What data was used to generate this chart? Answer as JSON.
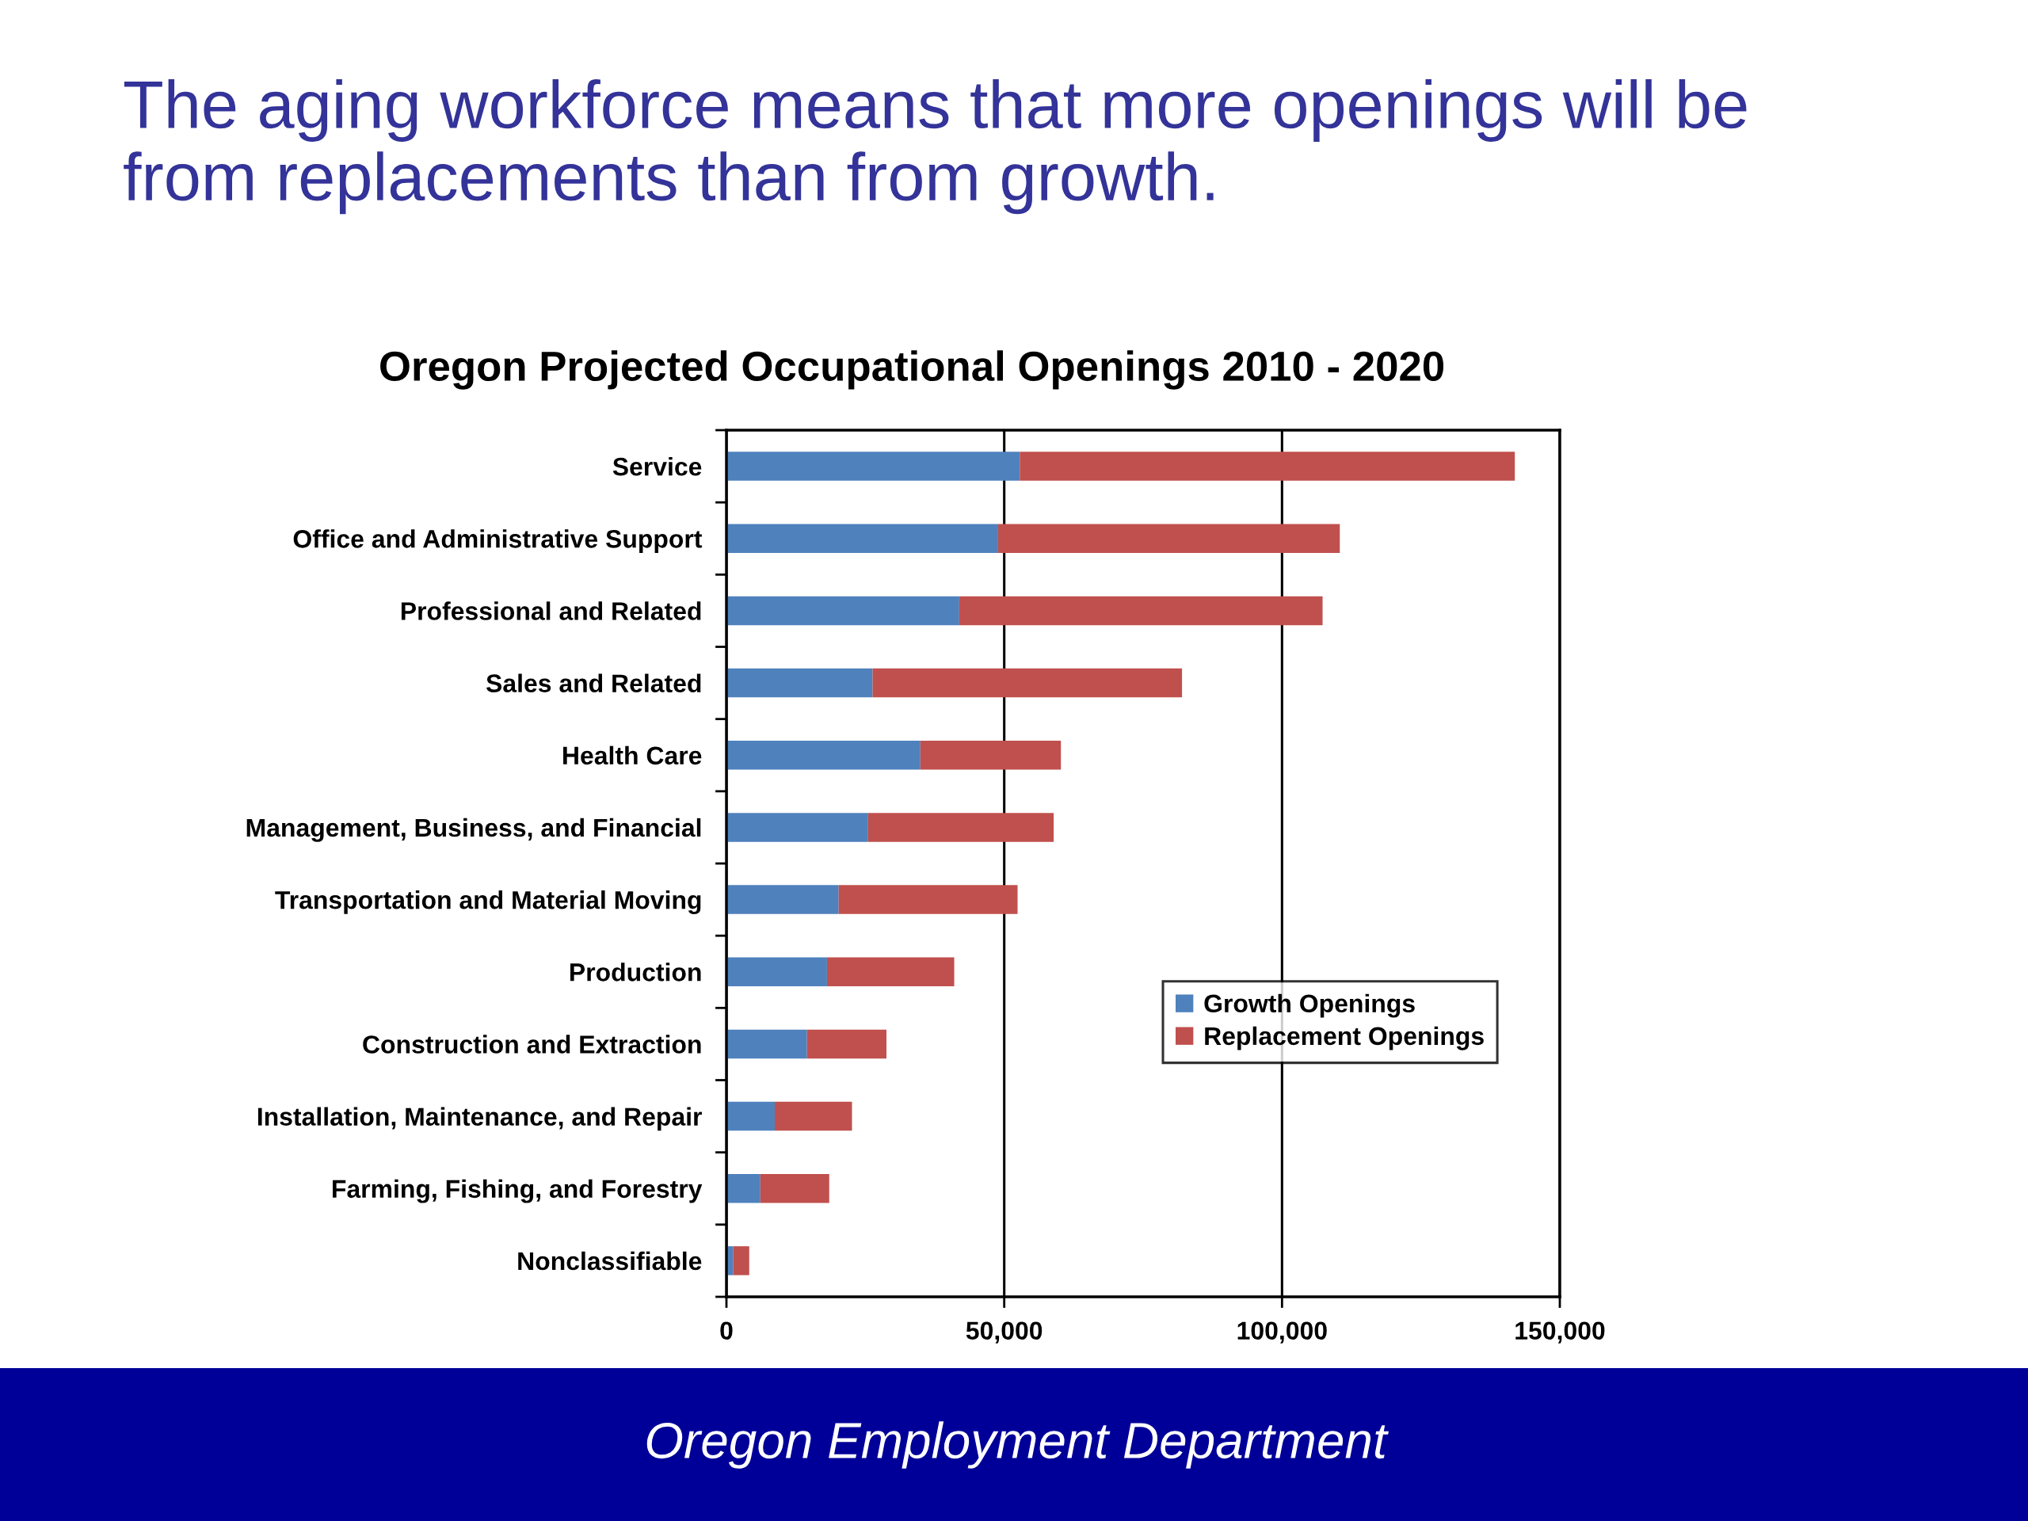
{
  "chart_data": {
    "type": "bar",
    "orientation": "horizontal",
    "stacked": true,
    "title": "The aging workforce means that more openings will be\nfrom replacements than from growth.",
    "subtitle": "Oregon Projected Occupational Openings 2010 - 2020",
    "categories": [
      "Service",
      "Office and Administrative Support",
      "Professional and Related",
      "Sales and Related",
      "Health Care",
      "Management, Business, and Financial",
      "Transportation and Material Moving",
      "Production",
      "Construction and Extraction",
      "Installation, Maintenance, and Repair",
      "Farming, Fishing, and Forestry",
      "Nonclassifiable"
    ],
    "series": [
      {
        "name": "Growth Openings",
        "color": "#4f81bd",
        "values": [
          52800,
          48900,
          41900,
          26300,
          34900,
          25500,
          20200,
          18100,
          14500,
          8700,
          6100,
          1200
        ]
      },
      {
        "name": "Replacement Openings",
        "color": "#c0504d",
        "values": [
          89100,
          61500,
          65400,
          55700,
          25300,
          33400,
          32200,
          22900,
          14300,
          13900,
          12400,
          2900
        ]
      }
    ],
    "xlim": [
      0,
      150000
    ],
    "xticks": [
      0,
      {
        "value": 50000,
        "label": "50,000"
      },
      {
        "value": 100000,
        "label": "100,000"
      },
      {
        "value": 150000,
        "label": "150,000"
      }
    ],
    "grid": "x",
    "legend": "lower right",
    "annotations": [
      "Oregon Employment Department"
    ]
  }
}
